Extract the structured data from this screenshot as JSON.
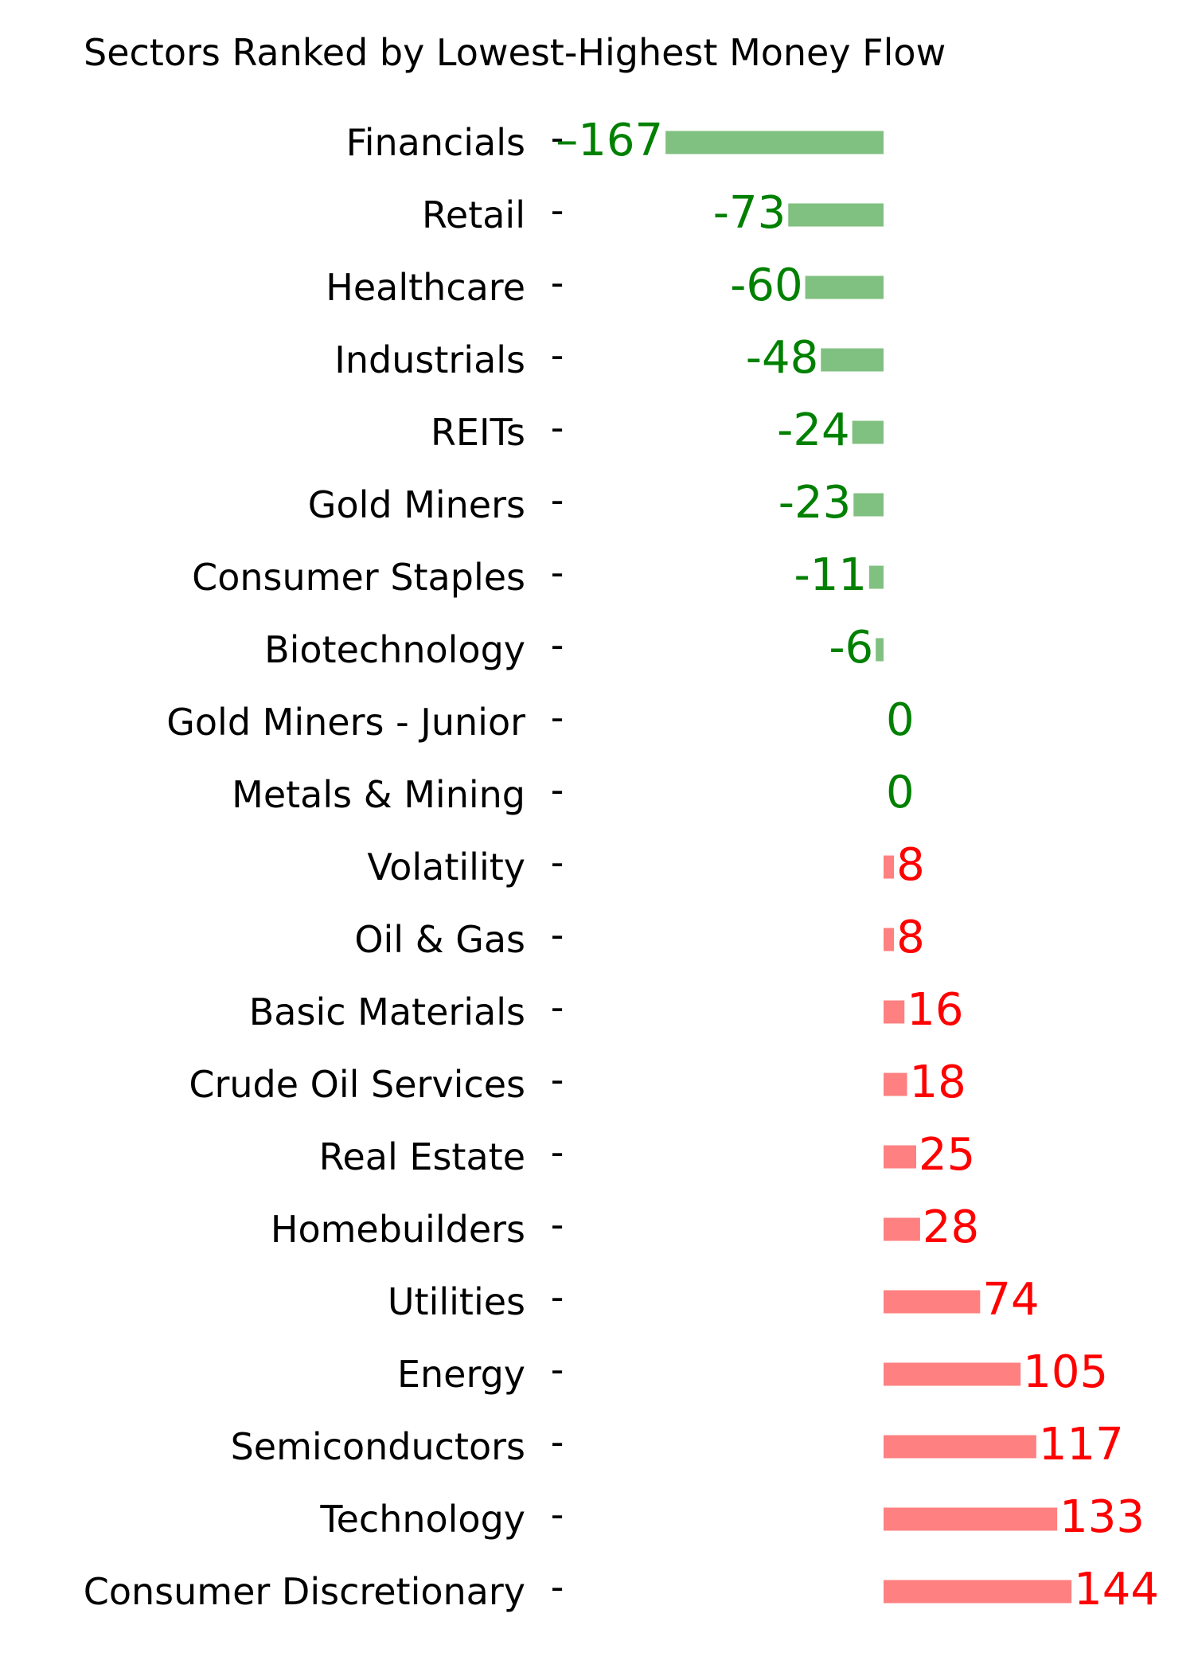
{
  "chart_data": {
    "type": "bar",
    "orientation": "horizontal",
    "title": "Sectors Ranked by Lowest-Highest Money Flow",
    "xlabel": "",
    "ylabel": "",
    "grid": false,
    "axes_visible": false,
    "categories": [
      "Financials",
      "Retail",
      "Healthcare",
      "Industrials",
      "REITs",
      "Gold Miners",
      "Consumer Staples",
      "Biotechnology",
      "Gold Miners - Junior",
      "Metals & Mining",
      "Volatility",
      "Oil & Gas",
      "Basic Materials",
      "Crude Oil Services",
      "Real Estate",
      "Homebuilders",
      "Utilities",
      "Energy",
      "Semiconductors",
      "Technology",
      "Consumer Discretionary"
    ],
    "values": [
      -167,
      -73,
      -60,
      -48,
      -24,
      -23,
      -11,
      -6,
      0,
      0,
      8,
      8,
      16,
      18,
      25,
      28,
      74,
      105,
      117,
      133,
      144
    ],
    "value_labels": [
      "–167",
      "-73",
      "-60",
      "-48",
      "-24",
      "-23",
      "-11",
      "-6",
      "0",
      "0",
      "8",
      "8",
      "16",
      "18",
      "25",
      "28",
      "74",
      "105",
      "117",
      "133",
      "144"
    ],
    "tick_mark": "-",
    "colors": {
      "negative_bar": "#80c080",
      "negative_text": "#008000",
      "positive_bar": "#ff8080",
      "positive_text": "#ff0000"
    }
  }
}
